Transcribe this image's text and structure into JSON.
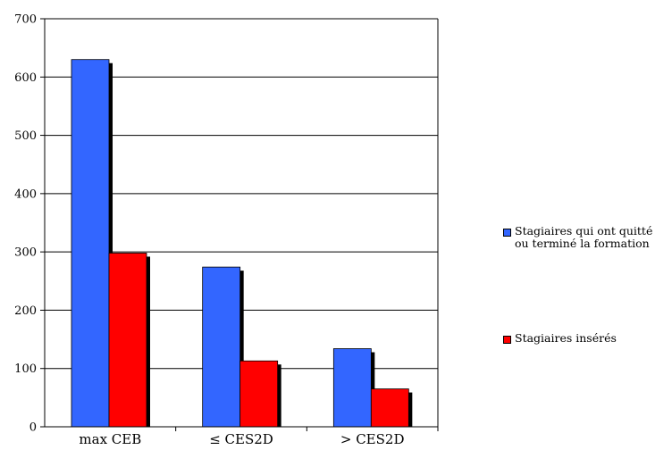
{
  "chart_data": {
    "type": "bar",
    "categories": [
      "max CEB",
      "≤ CES2D",
      "> CES2D"
    ],
    "series": [
      {
        "name": "Stagiaires qui ont quitté ou terminé la formation",
        "values": [
          630,
          274,
          134
        ],
        "color": "#3366ff"
      },
      {
        "name": "Stagiaires insérés",
        "values": [
          298,
          113,
          65
        ],
        "color": "#ff0000"
      }
    ],
    "ylim": [
      0,
      700
    ],
    "yticks": [
      0,
      100,
      200,
      300,
      400,
      500,
      600,
      700
    ],
    "grid": true,
    "legend_position": "right",
    "bar_shadow": true
  },
  "legend": {
    "item1_line1": "Stagiaires qui ont quitté",
    "item1_line2": "ou terminé la formation",
    "item2": "Stagiaires insérés"
  }
}
